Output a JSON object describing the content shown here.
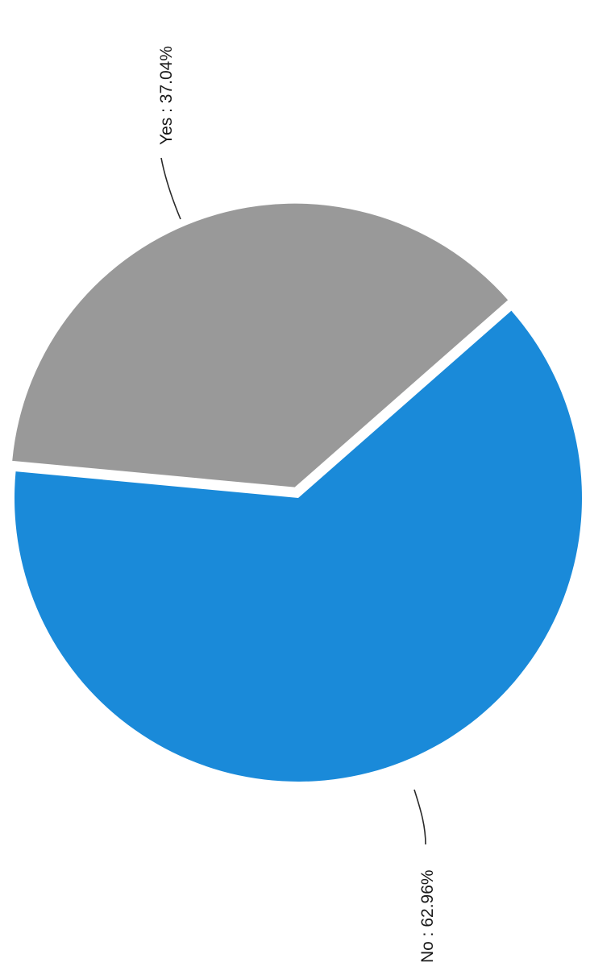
{
  "chart_data": {
    "type": "pie",
    "title": "",
    "orientation": "rotated-90-clockwise",
    "slices": [
      {
        "label": "Yes",
        "value": 37.04,
        "display": "Yes : 37.04%",
        "color": "#999999",
        "exploded": true
      },
      {
        "label": "No",
        "value": 62.96,
        "display": "No : 62.96%",
        "color": "#1a8ad9",
        "exploded": false
      }
    ]
  }
}
